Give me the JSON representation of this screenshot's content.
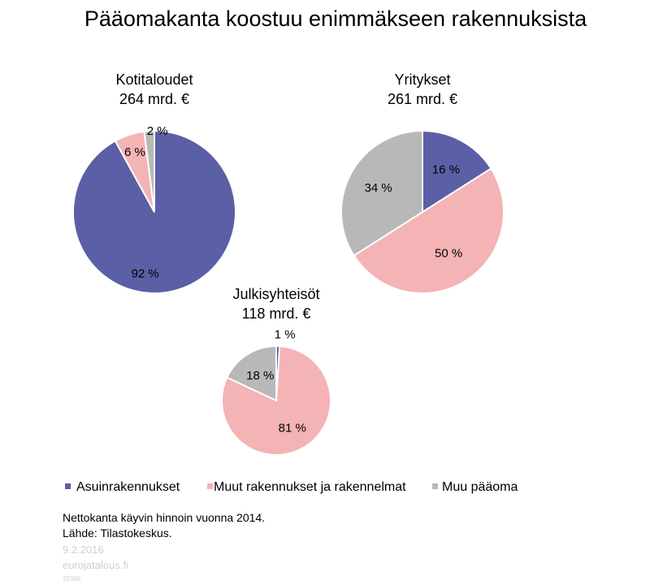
{
  "title": "Pääomakanta koostuu enimmäkseen rakennuksista",
  "colors": {
    "asuinrakennukset": "#5b5fa6",
    "muut_rakennukset": "#f4b3b5",
    "muu_paaoma": "#b8b8b8"
  },
  "legend": [
    {
      "label": "Asuinrakennukset",
      "color": "#5b5fa6"
    },
    {
      "label": "Muut rakennukset ja rakennelmat",
      "color": "#f4b3b5"
    },
    {
      "label": "Muu pääoma",
      "color": "#b8b8b8"
    }
  ],
  "chart_data": [
    {
      "type": "pie",
      "title": "Kotitaloudet",
      "subtitle": "264 mrd. €",
      "categories": [
        "Asuinrakennukset",
        "Muut rakennukset ja rakennelmat",
        "Muu pääoma"
      ],
      "values": [
        92,
        6,
        2
      ],
      "labels": [
        "92 %",
        "6 %",
        "2 %"
      ]
    },
    {
      "type": "pie",
      "title": "Yritykset",
      "subtitle": "261 mrd. €",
      "categories": [
        "Asuinrakennukset",
        "Muut rakennukset ja rakennelmat",
        "Muu pääoma"
      ],
      "values": [
        16,
        50,
        34
      ],
      "labels": [
        "16 %",
        "50 %",
        "34 %"
      ]
    },
    {
      "type": "pie",
      "title": "Julkisyhteisöt",
      "subtitle": "118 mrd. €",
      "categories": [
        "Asuinrakennukset",
        "Muut rakennukset ja rakennelmat",
        "Muu pääoma"
      ],
      "values": [
        1,
        81,
        18
      ],
      "labels": [
        "1 %",
        "81 %",
        "18 %"
      ]
    }
  ],
  "footer": {
    "note": "Nettokanta käyvin hinnoin vuonna 2014.",
    "source": "Lähde: Tilastokeskus.",
    "date": "9.2.2016",
    "site": "eurojatalous.fi",
    "id": "32386"
  }
}
